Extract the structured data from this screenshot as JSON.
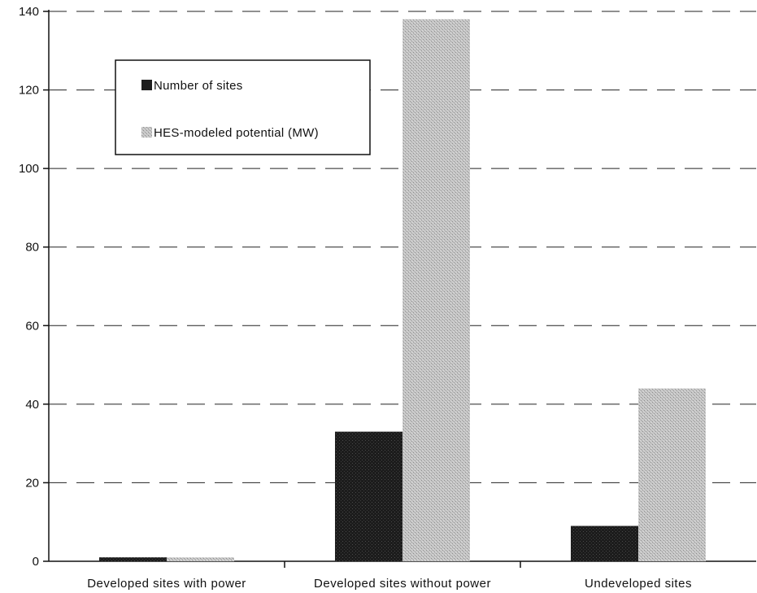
{
  "chart_data": {
    "type": "bar",
    "categories": [
      "Developed sites with power",
      "Developed sites without power",
      "Undeveloped sites"
    ],
    "series": [
      {
        "name": "Number of sites",
        "values": [
          1,
          33,
          9
        ],
        "color": "#1e1e1e"
      },
      {
        "name": "HES-modeled potential (MW)",
        "values": [
          1,
          138,
          44
        ],
        "color": "#b9b9b9"
      }
    ],
    "yticks": [
      "0",
      "20",
      "40",
      "60",
      "80",
      "100",
      "120",
      "140"
    ],
    "ylim": [
      0,
      140
    ],
    "grid": "dashed horizontal",
    "legend_position": "top-left"
  }
}
